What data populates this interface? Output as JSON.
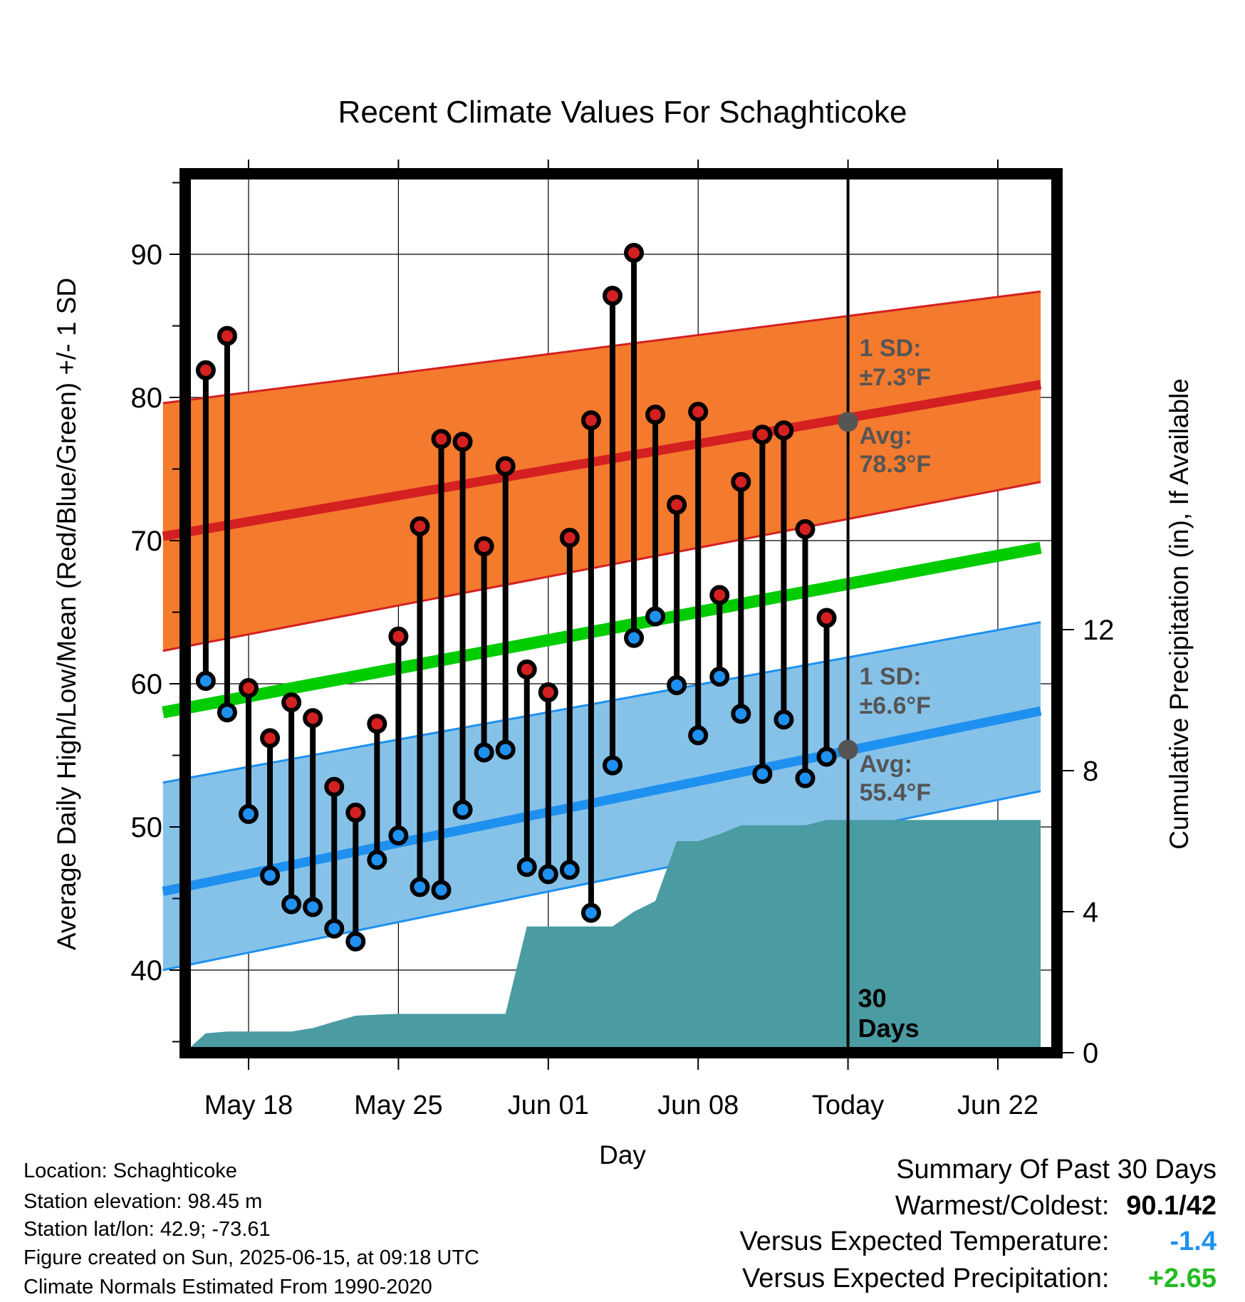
{
  "chart_data": {
    "type": "line",
    "title": "Recent Climate Values For Schaghticoke",
    "xlabel": "Day",
    "ylabel": "Average Daily High/Low/Mean (Red/Blue/Green) +/- 1 SD",
    "y2label": "Cumulative Precipitation (in), If Available",
    "ylim": [
      35,
      96
    ],
    "y2lim": [
      0,
      23.6
    ],
    "xlim": [
      "2025-05-14",
      "2025-06-24"
    ],
    "yticks": [
      40,
      50,
      60,
      70,
      80,
      90
    ],
    "y2ticks": [
      0,
      4,
      8,
      12
    ],
    "x_ticks": [
      {
        "date": "2025-05-18",
        "label": "May 18"
      },
      {
        "date": "2025-05-25",
        "label": "May 25"
      },
      {
        "date": "2025-06-01",
        "label": "Jun 01"
      },
      {
        "date": "2025-06-08",
        "label": "Jun 08"
      },
      {
        "date": "2025-06-15",
        "label": "Today"
      },
      {
        "date": "2025-06-22",
        "label": "Jun 22"
      }
    ],
    "grid": true,
    "today": "2025-06-15",
    "days_label": [
      "30",
      "Days"
    ],
    "normals": {
      "dates": [
        "2025-05-14",
        "2025-06-24"
      ],
      "high_avg": [
        70.3,
        80.9
      ],
      "high_sd_upper": [
        79.6,
        87.4
      ],
      "high_sd_lower": [
        62.3,
        74.1
      ],
      "mean_avg": [
        58.0,
        69.5
      ],
      "low_avg": [
        45.5,
        58.1
      ],
      "low_sd_upper": [
        53.1,
        64.3
      ],
      "low_sd_lower": [
        40.0,
        52.5
      ]
    },
    "high_annotation": {
      "sd_label": "1 SD:",
      "sd_value": "±7.3°F",
      "avg_label": "Avg:",
      "avg_value": "78.3°F",
      "value": 78.3
    },
    "low_annotation": {
      "sd_label": "1 SD:",
      "sd_value": "±6.6°F",
      "avg_label": "Avg:",
      "avg_value": "55.4°F",
      "value": 55.4
    },
    "series": [
      {
        "name": "High",
        "x": [
          "2025-05-16",
          "2025-05-17",
          "2025-05-18",
          "2025-05-19",
          "2025-05-20",
          "2025-05-21",
          "2025-05-22",
          "2025-05-23",
          "2025-05-24",
          "2025-05-25",
          "2025-05-26",
          "2025-05-27",
          "2025-05-28",
          "2025-05-29",
          "2025-05-30",
          "2025-05-31",
          "2025-06-01",
          "2025-06-02",
          "2025-06-03",
          "2025-06-04",
          "2025-06-05",
          "2025-06-06",
          "2025-06-07",
          "2025-06-08",
          "2025-06-09",
          "2025-06-10",
          "2025-06-11",
          "2025-06-12",
          "2025-06-13",
          "2025-06-14"
        ],
        "values": [
          81.9,
          84.3,
          59.7,
          56.2,
          58.7,
          57.6,
          52.8,
          51.0,
          57.2,
          63.3,
          71.0,
          77.1,
          76.9,
          69.6,
          75.2,
          61.0,
          59.4,
          70.2,
          78.4,
          87.1,
          90.1,
          78.8,
          72.5,
          79.0,
          66.2,
          74.1,
          77.4,
          77.7,
          70.8,
          64.6
        ]
      },
      {
        "name": "Low",
        "x": [
          "2025-05-16",
          "2025-05-17",
          "2025-05-18",
          "2025-05-19",
          "2025-05-20",
          "2025-05-21",
          "2025-05-22",
          "2025-05-23",
          "2025-05-24",
          "2025-05-25",
          "2025-05-26",
          "2025-05-27",
          "2025-05-28",
          "2025-05-29",
          "2025-05-30",
          "2025-05-31",
          "2025-06-01",
          "2025-06-02",
          "2025-06-03",
          "2025-06-04",
          "2025-06-05",
          "2025-06-06",
          "2025-06-07",
          "2025-06-08",
          "2025-06-09",
          "2025-06-10",
          "2025-06-11",
          "2025-06-12",
          "2025-06-13",
          "2025-06-14"
        ],
        "values": [
          60.2,
          58.0,
          50.9,
          46.6,
          44.6,
          44.4,
          42.9,
          42.0,
          47.7,
          49.4,
          45.8,
          45.6,
          51.2,
          55.2,
          55.4,
          47.2,
          46.7,
          47.0,
          44.0,
          54.3,
          63.2,
          64.7,
          59.9,
          56.4,
          60.5,
          57.9,
          53.7,
          57.5,
          53.4,
          54.9
        ]
      }
    ],
    "precip": {
      "x": [
        "2025-05-14T12:00",
        "2025-05-15",
        "2025-05-16",
        "2025-05-17",
        "2025-05-18",
        "2025-05-19",
        "2025-05-20",
        "2025-05-21",
        "2025-05-22",
        "2025-05-23",
        "2025-05-24",
        "2025-05-25",
        "2025-05-26",
        "2025-05-27",
        "2025-05-28",
        "2025-05-29",
        "2025-05-30",
        "2025-05-31",
        "2025-06-01",
        "2025-06-02",
        "2025-06-03",
        "2025-06-04",
        "2025-06-05",
        "2025-06-06",
        "2025-06-07",
        "2025-06-08",
        "2025-06-09",
        "2025-06-10",
        "2025-06-11",
        "2025-06-12",
        "2025-06-13",
        "2025-06-14",
        "2025-06-24"
      ],
      "values": [
        0.0,
        0.0,
        0.55,
        0.6,
        0.6,
        0.6,
        0.6,
        0.7,
        0.88,
        1.05,
        1.08,
        1.1,
        1.1,
        1.1,
        1.1,
        1.1,
        1.1,
        3.58,
        3.58,
        3.58,
        3.58,
        3.58,
        4.0,
        4.3,
        6.0,
        6.0,
        6.2,
        6.45,
        6.45,
        6.45,
        6.45,
        6.6,
        6.6
      ]
    }
  },
  "meta": {
    "location": "Location: Schaghticoke",
    "elevation": "Station elevation: 98.45 m",
    "latlon": "Station lat/lon: 42.9; -73.61",
    "created": "Figure created on Sun, 2025-06-15, at 09:18 UTC",
    "normals": "Climate Normals Estimated From 1990-2020"
  },
  "summary": {
    "title": "Summary Of Past 30 Days",
    "warmest_label": "Warmest/Coldest:",
    "warmest_value": "90.1/42",
    "temp_label": "Versus Expected Temperature:",
    "temp_value": "-1.4",
    "precip_label": "Versus Expected Precipitation:",
    "precip_value": "+2.65"
  },
  "colors": {
    "high": "#d42020",
    "high_band": "#f47a2e",
    "low": "#1e90f0",
    "low_band": "#86c2e8",
    "mean": "#00cc00",
    "precip": "#4a9ba2",
    "annotation": "#555555",
    "temp_value": "#1e90f0",
    "precip_value": "#22bb22"
  }
}
